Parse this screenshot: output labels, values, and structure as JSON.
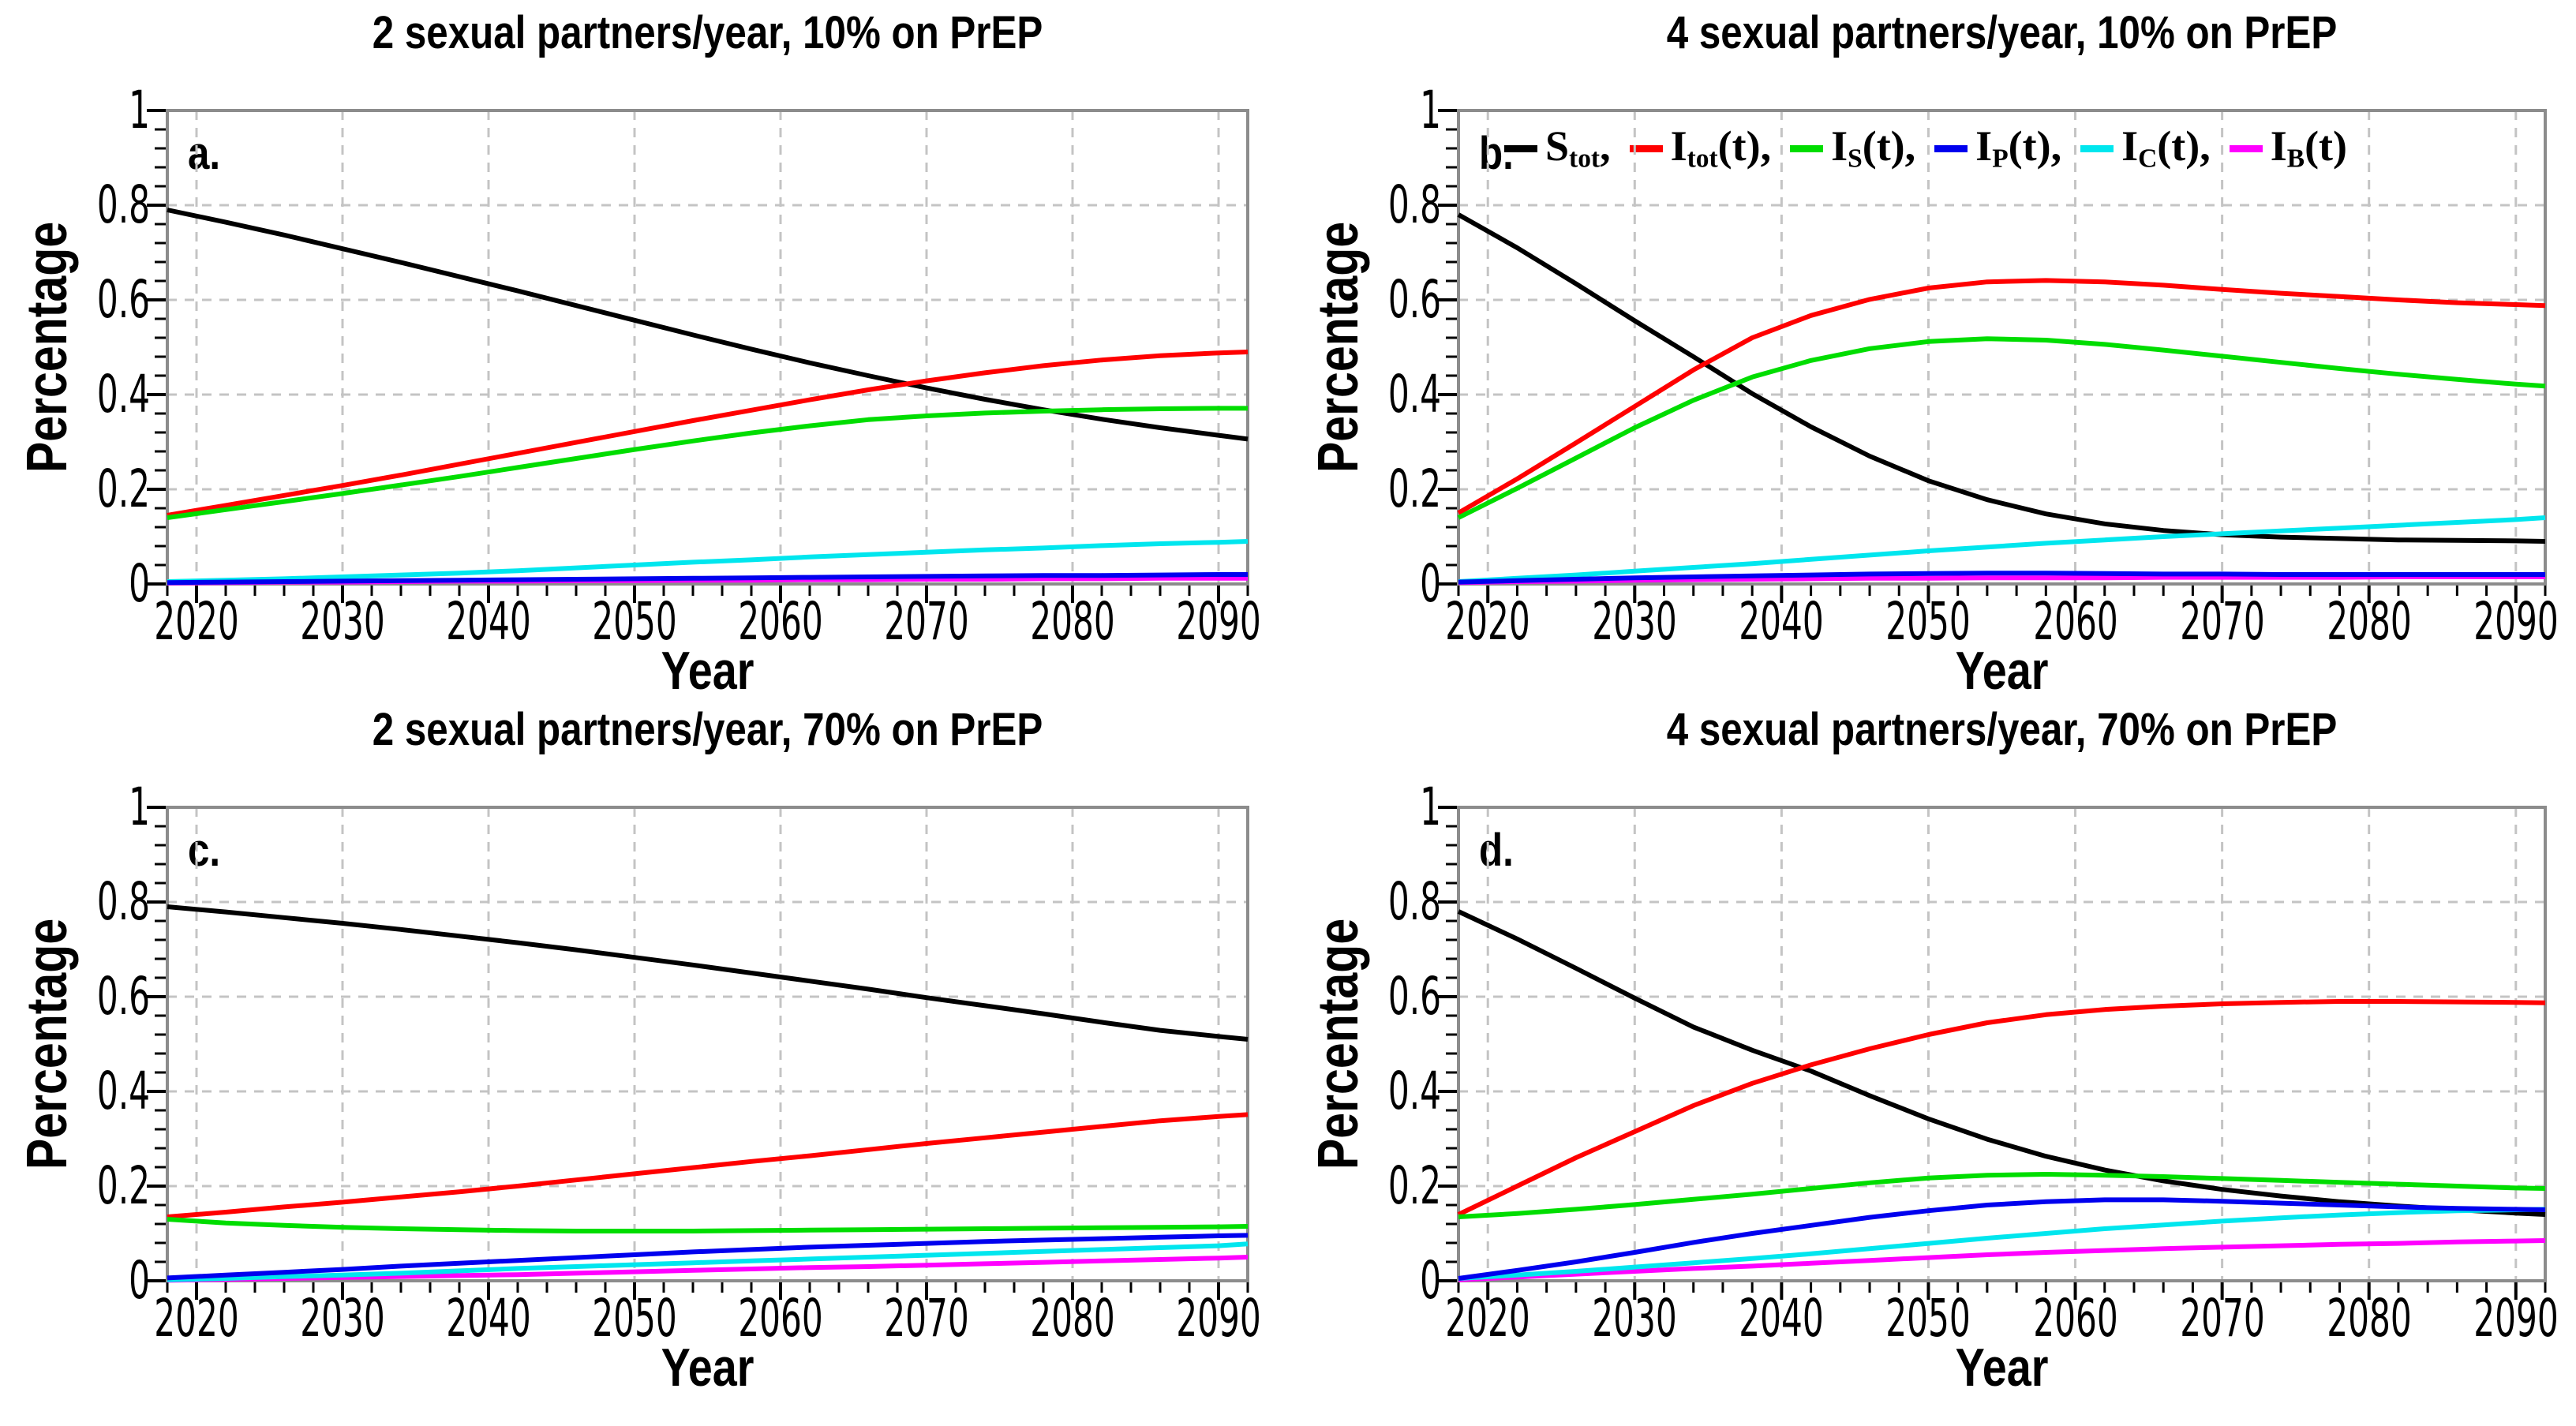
{
  "figure": {
    "ylabel": "Percentage",
    "xlabel": "Year",
    "background": "#ffffff",
    "frame_color": "#8c8c8c",
    "grid_color": "#c4c4c4",
    "tick_color": "#000000",
    "x_tick_values": [
      2020,
      2030,
      2040,
      2050,
      2060,
      2070,
      2080,
      2090
    ],
    "x_tick_labels": [
      "2020",
      "2030",
      "2040",
      "2050",
      "2060",
      "2070",
      "2080",
      "2090"
    ],
    "y_tick_values": [
      0,
      0.2,
      0.4,
      0.6,
      0.8,
      1
    ],
    "y_tick_labels": [
      "0",
      "0.2",
      "0.4",
      "0.6",
      "0.8",
      "1"
    ]
  },
  "legend": {
    "location": "top-of-panel-b",
    "entries": [
      {
        "series": "S_tot",
        "pre": "S",
        "sub": "tot",
        "post": ",",
        "color": "#000000"
      },
      {
        "series": "I_tot(t)",
        "pre": "I",
        "sub": "tot",
        "post": "(t),",
        "color": "#ff0000"
      },
      {
        "series": "I_S(t)",
        "pre": "I",
        "sub": "S",
        "post": "(t),",
        "color": "#00dd00"
      },
      {
        "series": "I_P(t)",
        "pre": "I",
        "sub": "P",
        "post": "(t),",
        "color": "#0000ee"
      },
      {
        "series": "I_C(t)",
        "pre": "I",
        "sub": "C",
        "post": "(t),",
        "color": "#00e6ee"
      },
      {
        "series": "I_B(t)",
        "pre": "I",
        "sub": "B",
        "post": "(t)",
        "color": "#ff00ff"
      }
    ]
  },
  "chart_data": [
    {
      "type": "line",
      "panel_label": "a.",
      "title": "2 sexual partners/year, 10% on PrEP",
      "xlabel": "Year",
      "ylabel": "Percentage",
      "xlim": [
        2018,
        2092
      ],
      "ylim": [
        0,
        1
      ],
      "grid": true,
      "x": [
        2018,
        2022,
        2026,
        2030,
        2034,
        2038,
        2042,
        2046,
        2050,
        2054,
        2058,
        2062,
        2066,
        2070,
        2074,
        2078,
        2082,
        2086,
        2090,
        2092
      ],
      "series": [
        {
          "name": "S_tot",
          "color": "#000000",
          "values": [
            0.79,
            0.764,
            0.737,
            0.708,
            0.679,
            0.649,
            0.619,
            0.588,
            0.557,
            0.526,
            0.496,
            0.467,
            0.44,
            0.414,
            0.39,
            0.368,
            0.348,
            0.33,
            0.314,
            0.306
          ]
        },
        {
          "name": "I_tot(t)",
          "color": "#ff0000",
          "values": [
            0.145,
            0.166,
            0.187,
            0.208,
            0.23,
            0.253,
            0.276,
            0.299,
            0.322,
            0.345,
            0.367,
            0.389,
            0.41,
            0.429,
            0.446,
            0.461,
            0.473,
            0.482,
            0.488,
            0.49
          ]
        },
        {
          "name": "I_S(t)",
          "color": "#00dd00",
          "values": [
            0.14,
            0.157,
            0.174,
            0.191,
            0.209,
            0.227,
            0.246,
            0.265,
            0.284,
            0.302,
            0.319,
            0.334,
            0.347,
            0.355,
            0.361,
            0.365,
            0.368,
            0.37,
            0.371,
            0.371
          ]
        },
        {
          "name": "I_P(t)",
          "color": "#0000ee",
          "values": [
            0.003,
            0.004,
            0.005,
            0.006,
            0.007,
            0.008,
            0.009,
            0.01,
            0.011,
            0.012,
            0.013,
            0.014,
            0.015,
            0.016,
            0.017,
            0.018,
            0.018,
            0.019,
            0.02,
            0.02
          ]
        },
        {
          "name": "I_C(t)",
          "color": "#00e6ee",
          "values": [
            0.005,
            0.008,
            0.011,
            0.015,
            0.019,
            0.023,
            0.028,
            0.034,
            0.04,
            0.046,
            0.051,
            0.057,
            0.062,
            0.067,
            0.072,
            0.076,
            0.081,
            0.085,
            0.088,
            0.09
          ]
        },
        {
          "name": "I_B(t)",
          "color": "#ff00ff",
          "values": [
            0.002,
            0.003,
            0.004,
            0.004,
            0.005,
            0.006,
            0.006,
            0.007,
            0.007,
            0.008,
            0.008,
            0.009,
            0.009,
            0.01,
            0.01,
            0.011,
            0.011,
            0.012,
            0.012,
            0.012
          ]
        }
      ]
    },
    {
      "type": "line",
      "panel_label": "b.",
      "title": "4 sexual partners/year, 10% on PrEP",
      "xlabel": "Year",
      "ylabel": "Percentage",
      "xlim": [
        2018,
        2092
      ],
      "ylim": [
        0,
        1
      ],
      "grid": true,
      "x": [
        2018,
        2022,
        2026,
        2030,
        2034,
        2038,
        2042,
        2046,
        2050,
        2054,
        2058,
        2062,
        2066,
        2070,
        2074,
        2078,
        2082,
        2086,
        2090,
        2092
      ],
      "series": [
        {
          "name": "S_tot",
          "color": "#000000",
          "values": [
            0.78,
            0.71,
            0.634,
            0.556,
            0.48,
            0.402,
            0.332,
            0.27,
            0.218,
            0.178,
            0.148,
            0.127,
            0.113,
            0.104,
            0.099,
            0.096,
            0.093,
            0.092,
            0.091,
            0.09
          ]
        },
        {
          "name": "I_tot(t)",
          "color": "#ff0000",
          "values": [
            0.15,
            0.222,
            0.298,
            0.375,
            0.452,
            0.52,
            0.567,
            0.601,
            0.625,
            0.638,
            0.641,
            0.638,
            0.631,
            0.622,
            0.614,
            0.607,
            0.6,
            0.594,
            0.59,
            0.588
          ]
        },
        {
          "name": "I_S(t)",
          "color": "#00dd00",
          "values": [
            0.14,
            0.202,
            0.266,
            0.33,
            0.388,
            0.437,
            0.472,
            0.497,
            0.512,
            0.518,
            0.515,
            0.506,
            0.494,
            0.481,
            0.468,
            0.455,
            0.443,
            0.432,
            0.422,
            0.418
          ]
        },
        {
          "name": "I_P(t)",
          "color": "#0000ee",
          "values": [
            0.004,
            0.007,
            0.01,
            0.013,
            0.015,
            0.017,
            0.019,
            0.021,
            0.022,
            0.023,
            0.023,
            0.022,
            0.021,
            0.021,
            0.02,
            0.02,
            0.02,
            0.02,
            0.02,
            0.02
          ]
        },
        {
          "name": "I_C(t)",
          "color": "#00e6ee",
          "values": [
            0.005,
            0.012,
            0.019,
            0.027,
            0.035,
            0.043,
            0.052,
            0.061,
            0.07,
            0.078,
            0.086,
            0.093,
            0.1,
            0.106,
            0.112,
            0.118,
            0.124,
            0.13,
            0.136,
            0.14
          ]
        },
        {
          "name": "I_B(t)",
          "color": "#ff00ff",
          "values": [
            0.003,
            0.005,
            0.006,
            0.008,
            0.009,
            0.01,
            0.011,
            0.012,
            0.012,
            0.013,
            0.013,
            0.013,
            0.014,
            0.014,
            0.014,
            0.014,
            0.015,
            0.015,
            0.015,
            0.015
          ]
        }
      ]
    },
    {
      "type": "line",
      "panel_label": "c.",
      "title": "2 sexual partners/year, 70% on PrEP",
      "xlabel": "Year",
      "ylabel": "Percentage",
      "xlim": [
        2018,
        2092
      ],
      "ylim": [
        0,
        1
      ],
      "grid": true,
      "x": [
        2018,
        2022,
        2026,
        2030,
        2034,
        2038,
        2042,
        2046,
        2050,
        2054,
        2058,
        2062,
        2066,
        2070,
        2074,
        2078,
        2082,
        2086,
        2090,
        2092
      ],
      "series": [
        {
          "name": "S_tot",
          "color": "#000000",
          "values": [
            0.79,
            0.779,
            0.767,
            0.755,
            0.742,
            0.728,
            0.714,
            0.699,
            0.683,
            0.667,
            0.65,
            0.633,
            0.616,
            0.598,
            0.581,
            0.564,
            0.546,
            0.529,
            0.516,
            0.51
          ]
        },
        {
          "name": "I_tot(t)",
          "color": "#ff0000",
          "values": [
            0.135,
            0.145,
            0.156,
            0.166,
            0.177,
            0.188,
            0.2,
            0.213,
            0.226,
            0.239,
            0.252,
            0.264,
            0.277,
            0.29,
            0.302,
            0.314,
            0.326,
            0.338,
            0.347,
            0.351
          ]
        },
        {
          "name": "I_S(t)",
          "color": "#00dd00",
          "values": [
            0.13,
            0.122,
            0.117,
            0.113,
            0.11,
            0.108,
            0.106,
            0.105,
            0.105,
            0.105,
            0.106,
            0.107,
            0.108,
            0.109,
            0.11,
            0.111,
            0.112,
            0.113,
            0.114,
            0.115
          ]
        },
        {
          "name": "I_P(t)",
          "color": "#0000ee",
          "values": [
            0.006,
            0.012,
            0.018,
            0.024,
            0.031,
            0.037,
            0.043,
            0.049,
            0.055,
            0.061,
            0.066,
            0.071,
            0.075,
            0.079,
            0.083,
            0.086,
            0.089,
            0.092,
            0.095,
            0.096
          ]
        },
        {
          "name": "I_C(t)",
          "color": "#00e6ee",
          "values": [
            0.002,
            0.005,
            0.009,
            0.012,
            0.016,
            0.021,
            0.026,
            0.03,
            0.034,
            0.038,
            0.042,
            0.046,
            0.05,
            0.054,
            0.058,
            0.062,
            0.066,
            0.07,
            0.074,
            0.078
          ]
        },
        {
          "name": "I_B(t)",
          "color": "#ff00ff",
          "values": [
            0.001,
            0.003,
            0.005,
            0.007,
            0.009,
            0.011,
            0.013,
            0.016,
            0.019,
            0.022,
            0.025,
            0.028,
            0.03,
            0.033,
            0.036,
            0.039,
            0.042,
            0.045,
            0.048,
            0.05
          ]
        }
      ]
    },
    {
      "type": "line",
      "panel_label": "d.",
      "title": "4 sexual partners/year, 70% on PrEP",
      "xlabel": "Year",
      "ylabel": "Percentage",
      "xlim": [
        2018,
        2092
      ],
      "ylim": [
        0,
        1
      ],
      "grid": true,
      "x": [
        2018,
        2022,
        2026,
        2030,
        2034,
        2038,
        2042,
        2046,
        2050,
        2054,
        2058,
        2062,
        2066,
        2070,
        2074,
        2078,
        2082,
        2086,
        2090,
        2092
      ],
      "series": [
        {
          "name": "S_tot",
          "color": "#000000",
          "values": [
            0.78,
            0.722,
            0.66,
            0.597,
            0.536,
            0.487,
            0.443,
            0.391,
            0.342,
            0.299,
            0.263,
            0.234,
            0.211,
            0.193,
            0.179,
            0.167,
            0.158,
            0.15,
            0.143,
            0.14
          ]
        },
        {
          "name": "I_tot(t)",
          "color": "#ff0000",
          "values": [
            0.14,
            0.2,
            0.26,
            0.315,
            0.37,
            0.417,
            0.456,
            0.49,
            0.52,
            0.545,
            0.562,
            0.573,
            0.58,
            0.585,
            0.588,
            0.59,
            0.59,
            0.589,
            0.588,
            0.587
          ]
        },
        {
          "name": "I_S(t)",
          "color": "#00dd00",
          "values": [
            0.135,
            0.142,
            0.151,
            0.161,
            0.172,
            0.183,
            0.195,
            0.207,
            0.217,
            0.223,
            0.225,
            0.223,
            0.22,
            0.216,
            0.212,
            0.208,
            0.204,
            0.2,
            0.196,
            0.195
          ]
        },
        {
          "name": "I_P(t)",
          "color": "#0000ee",
          "values": [
            0.005,
            0.022,
            0.04,
            0.06,
            0.081,
            0.1,
            0.117,
            0.134,
            0.148,
            0.16,
            0.167,
            0.171,
            0.171,
            0.168,
            0.164,
            0.16,
            0.156,
            0.153,
            0.151,
            0.15
          ]
        },
        {
          "name": "I_C(t)",
          "color": "#00e6ee",
          "values": [
            0.005,
            0.012,
            0.02,
            0.029,
            0.038,
            0.047,
            0.057,
            0.068,
            0.079,
            0.09,
            0.1,
            0.11,
            0.118,
            0.126,
            0.133,
            0.139,
            0.144,
            0.148,
            0.15,
            0.151
          ]
        },
        {
          "name": "I_B(t)",
          "color": "#ff00ff",
          "values": [
            0.002,
            0.008,
            0.014,
            0.02,
            0.026,
            0.031,
            0.037,
            0.043,
            0.049,
            0.055,
            0.06,
            0.064,
            0.068,
            0.071,
            0.074,
            0.077,
            0.079,
            0.082,
            0.084,
            0.085
          ]
        }
      ]
    }
  ]
}
